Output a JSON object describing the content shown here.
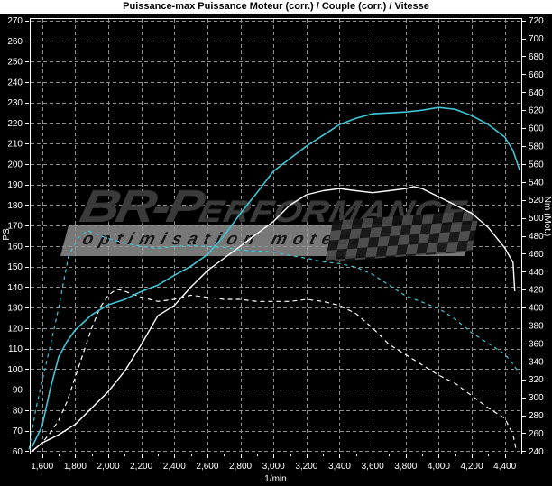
{
  "watermark": {
    "brand_big": "BR-P",
    "brand_rest": "ERFORMANCE",
    "tagline": "optimisation moteur"
  },
  "chart_data": {
    "type": "line",
    "title": "Puissance-max Puissance Moteur (corr.) / Couple (corr.) / Vitesse",
    "background": "#000000",
    "title_bar": {
      "bg": "#ffffff",
      "fg": "#000000"
    },
    "grid": {
      "on": true,
      "color": "#8f8f8f",
      "dash": "4,3"
    },
    "border_color": "#ffffff",
    "tick_label_color": "#ffffff",
    "x_axis": {
      "label": "1/min",
      "min": 1525,
      "max": 4500,
      "ticks": [
        1600,
        1800,
        2000,
        2200,
        2400,
        2600,
        2800,
        3000,
        3200,
        3400,
        3600,
        3800,
        4000,
        4200,
        4400
      ],
      "tick_labels": [
        "1,600",
        "1,800",
        "2,000",
        "2,200",
        "2,400",
        "2,600",
        "2,800",
        "3,000",
        "3,200",
        "3,400",
        "3,600",
        "3,800",
        "4,000",
        "4,200",
        "4,400"
      ],
      "minor_ticks": [
        1700,
        1900,
        2100,
        2300,
        2500,
        2700,
        2900,
        3100,
        3300,
        3500,
        3700,
        3900,
        4100,
        4300
      ]
    },
    "y_left": {
      "label": "PS",
      "min": 58.8,
      "max": 271.2,
      "ticks": [
        60,
        70,
        80,
        90,
        100,
        110,
        120,
        130,
        140,
        150,
        160,
        170,
        180,
        190,
        200,
        210,
        220,
        230,
        240,
        250,
        260,
        270
      ],
      "grid_from": "left"
    },
    "y_right": {
      "label": "Nm (Mot.)",
      "min": 237.3,
      "max": 722.7,
      "ticks": [
        240,
        260,
        280,
        300,
        320,
        340,
        360,
        380,
        400,
        420,
        440,
        460,
        480,
        500,
        520,
        540,
        560,
        580,
        600,
        620,
        640,
        660,
        680,
        700,
        720
      ]
    },
    "series": [
      {
        "id": "torque-original",
        "style": "dashed",
        "axis": "right",
        "color": "#3fc6d6",
        "dash": "4,4",
        "width": 1.2,
        "points": [
          [
            1520,
            242
          ],
          [
            1560,
            285
          ],
          [
            1600,
            318
          ],
          [
            1650,
            358
          ],
          [
            1700,
            400
          ],
          [
            1760,
            458
          ],
          [
            1820,
            478
          ],
          [
            1875,
            486
          ],
          [
            1950,
            480
          ],
          [
            2000,
            477
          ],
          [
            2100,
            472
          ],
          [
            2200,
            468
          ],
          [
            2300,
            466
          ],
          [
            2400,
            468
          ],
          [
            2500,
            469
          ],
          [
            2600,
            468
          ],
          [
            2700,
            467
          ],
          [
            2800,
            464
          ],
          [
            2900,
            463
          ],
          [
            3000,
            462
          ],
          [
            3100,
            458
          ],
          [
            3200,
            455
          ],
          [
            3300,
            451
          ],
          [
            3400,
            449
          ],
          [
            3500,
            445
          ],
          [
            3600,
            437
          ],
          [
            3700,
            425
          ],
          [
            3800,
            413
          ],
          [
            3900,
            406
          ],
          [
            4000,
            399
          ],
          [
            4100,
            387
          ],
          [
            4200,
            372
          ],
          [
            4300,
            360
          ],
          [
            4400,
            348
          ],
          [
            4450,
            337
          ],
          [
            4490,
            326
          ]
        ]
      },
      {
        "id": "power-original",
        "style": "dashed",
        "axis": "left",
        "color": "#ffffff",
        "dash": "5,4",
        "width": 1.2,
        "points": [
          [
            1540,
            60
          ],
          [
            1600,
            64
          ],
          [
            1650,
            69
          ],
          [
            1700,
            75
          ],
          [
            1750,
            84
          ],
          [
            1800,
            96
          ],
          [
            1850,
            108
          ],
          [
            1900,
            120
          ],
          [
            1950,
            130
          ],
          [
            2000,
            136
          ],
          [
            2050,
            139
          ],
          [
            2100,
            138
          ],
          [
            2200,
            135
          ],
          [
            2300,
            133
          ],
          [
            2400,
            134
          ],
          [
            2500,
            136
          ],
          [
            2600,
            135
          ],
          [
            2700,
            134
          ],
          [
            2800,
            134
          ],
          [
            2900,
            133
          ],
          [
            3000,
            133
          ],
          [
            3100,
            133
          ],
          [
            3200,
            134
          ],
          [
            3300,
            133
          ],
          [
            3400,
            131
          ],
          [
            3500,
            127
          ],
          [
            3600,
            120
          ],
          [
            3700,
            112
          ],
          [
            3800,
            107
          ],
          [
            3900,
            102
          ],
          [
            4000,
            97
          ],
          [
            4100,
            93
          ],
          [
            4200,
            87
          ],
          [
            4300,
            81
          ],
          [
            4400,
            76
          ],
          [
            4450,
            68
          ],
          [
            4470,
            60
          ]
        ]
      },
      {
        "id": "torque-tuned",
        "style": "solid",
        "axis": "right",
        "color": "#3fc6d6",
        "dash": null,
        "width": 1.6,
        "points": [
          [
            1540,
            245
          ],
          [
            1600,
            268
          ],
          [
            1650,
            310
          ],
          [
            1700,
            345
          ],
          [
            1750,
            362
          ],
          [
            1800,
            375
          ],
          [
            1900,
            392
          ],
          [
            2000,
            403
          ],
          [
            2100,
            409
          ],
          [
            2200,
            418
          ],
          [
            2300,
            425
          ],
          [
            2400,
            436
          ],
          [
            2500,
            446
          ],
          [
            2600,
            459
          ],
          [
            2700,
            480
          ],
          [
            2800,
            505
          ],
          [
            2900,
            528
          ],
          [
            3000,
            552
          ],
          [
            3100,
            566
          ],
          [
            3200,
            580
          ],
          [
            3300,
            592
          ],
          [
            3400,
            604
          ],
          [
            3500,
            611
          ],
          [
            3600,
            616
          ],
          [
            3700,
            617
          ],
          [
            3800,
            618
          ],
          [
            3900,
            620
          ],
          [
            4000,
            623
          ],
          [
            4100,
            621
          ],
          [
            4200,
            614
          ],
          [
            4300,
            604
          ],
          [
            4400,
            590
          ],
          [
            4450,
            575
          ],
          [
            4490,
            553
          ]
        ]
      },
      {
        "id": "power-tuned",
        "style": "solid",
        "axis": "left",
        "color": "#ffffff",
        "dash": null,
        "width": 1.4,
        "points": [
          [
            1540,
            60
          ],
          [
            1600,
            64
          ],
          [
            1700,
            68
          ],
          [
            1800,
            73
          ],
          [
            1900,
            81
          ],
          [
            2000,
            89
          ],
          [
            2100,
            99
          ],
          [
            2200,
            112
          ],
          [
            2300,
            126
          ],
          [
            2400,
            131
          ],
          [
            2500,
            140
          ],
          [
            2600,
            148
          ],
          [
            2700,
            154
          ],
          [
            2800,
            160
          ],
          [
            2900,
            166
          ],
          [
            3000,
            172
          ],
          [
            3100,
            180
          ],
          [
            3200,
            185
          ],
          [
            3300,
            187
          ],
          [
            3400,
            188
          ],
          [
            3500,
            187
          ],
          [
            3600,
            186
          ],
          [
            3700,
            187
          ],
          [
            3800,
            188
          ],
          [
            3850,
            189
          ],
          [
            3900,
            188
          ],
          [
            4000,
            184
          ],
          [
            4100,
            180
          ],
          [
            4200,
            176
          ],
          [
            4300,
            169
          ],
          [
            4400,
            159
          ],
          [
            4450,
            152
          ],
          [
            4460,
            138
          ]
        ]
      }
    ]
  }
}
